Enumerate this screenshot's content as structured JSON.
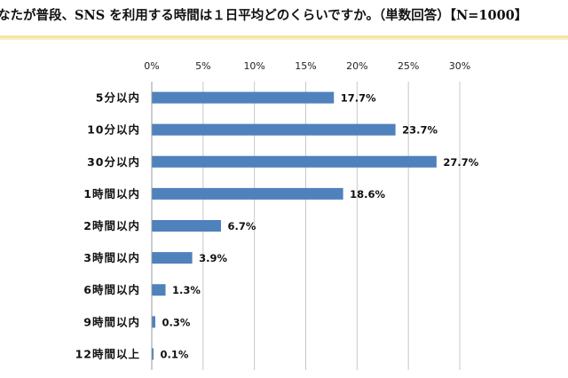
{
  "header": {
    "title": "なたが普段、SNS を利用する時間は１日平均どのくらいですか。（単数回答）【N=1000】"
  },
  "chart_data": {
    "type": "bar",
    "orientation": "horizontal",
    "title": "",
    "xlabel": "",
    "ylabel": "",
    "xlim": [
      0,
      30
    ],
    "tick_step": 5,
    "tick_labels": [
      "0%",
      "5%",
      "10%",
      "15%",
      "20%",
      "25%",
      "30%"
    ],
    "grid": true,
    "bar_color": "#4f81bd",
    "categories": [
      "5分以内",
      "10分以内",
      "30分以内",
      "1時間以内",
      "2時間以内",
      "3時間以内",
      "6時間以内",
      "9時間以内",
      "12時間以上"
    ],
    "values": [
      17.7,
      23.7,
      27.7,
      18.6,
      6.7,
      3.9,
      1.3,
      0.3,
      0.1
    ],
    "data_labels": [
      "17.7%",
      "23.7%",
      "27.7%",
      "18.6%",
      "6.7%",
      "3.9%",
      "1.3%",
      "0.3%",
      "0.1%"
    ]
  }
}
